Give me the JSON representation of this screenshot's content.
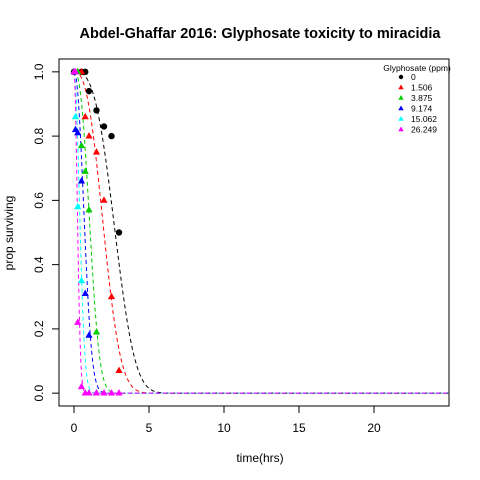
{
  "chart_data": {
    "type": "scatter",
    "title": "Abdel-Ghaffar 2016: Glyphosate toxicity to miracidia",
    "xlabel": "time(hrs)",
    "ylabel": "prop surviving",
    "xlim": [
      -1,
      25
    ],
    "ylim": [
      -0.04,
      1.04
    ],
    "x_ticks": [
      0,
      5,
      10,
      15,
      20
    ],
    "x_tick_labels": [
      "0",
      "5",
      "10",
      "15",
      "20"
    ],
    "y_ticks": [
      0.0,
      0.2,
      0.4,
      0.6,
      0.8,
      1.0
    ],
    "y_tick_labels": [
      "0.0",
      "0.2",
      "0.4",
      "0.6",
      "0.8",
      "1.0"
    ],
    "legend": {
      "title": "Glyphosate (ppm)",
      "position": "top-right"
    },
    "series": [
      {
        "name": "0",
        "color": "#000000",
        "marker": "circle",
        "points": [
          [
            0,
            1.0
          ],
          [
            0.5,
            1.0
          ],
          [
            0.75,
            1.0
          ],
          [
            1,
            0.94
          ],
          [
            1.5,
            0.88
          ],
          [
            2,
            0.83
          ],
          [
            2.5,
            0.8
          ],
          [
            3,
            0.5
          ]
        ],
        "fit": {
          "shape": 3.0,
          "scale": 3.1
        }
      },
      {
        "name": "1.506",
        "color": "#ff0000",
        "marker": "triangle",
        "points": [
          [
            0.25,
            1.0
          ],
          [
            0.5,
            1.0
          ],
          [
            0.75,
            0.86
          ],
          [
            1,
            0.8
          ],
          [
            1.5,
            0.75
          ],
          [
            2,
            0.6
          ],
          [
            2.5,
            0.3
          ],
          [
            3,
            0.07
          ]
        ],
        "fit": {
          "shape": 2.6,
          "scale": 2.3
        }
      },
      {
        "name": "3.875",
        "color": "#00cd00",
        "marker": "triangle",
        "points": [
          [
            0,
            1.0
          ],
          [
            0.25,
            1.0
          ],
          [
            0.5,
            0.77
          ],
          [
            0.75,
            0.69
          ],
          [
            1,
            0.57
          ],
          [
            1.5,
            0.19
          ]
        ],
        "fit": {
          "shape": 2.5,
          "scale": 1.25
        }
      },
      {
        "name": "9.174",
        "color": "#0000ff",
        "marker": "triangle",
        "points": [
          [
            0,
            1.0
          ],
          [
            0.1,
            0.82
          ],
          [
            0.25,
            0.81
          ],
          [
            0.5,
            0.66
          ],
          [
            0.75,
            0.31
          ],
          [
            1,
            0.18
          ],
          [
            1.5,
            0.0
          ]
        ],
        "fit": {
          "shape": 2.2,
          "scale": 0.85
        }
      },
      {
        "name": "15.062",
        "color": "#00ffff",
        "marker": "triangle",
        "points": [
          [
            0,
            1.0
          ],
          [
            0.1,
            0.86
          ],
          [
            0.25,
            0.58
          ],
          [
            0.5,
            0.35
          ],
          [
            1,
            0.0
          ],
          [
            1.5,
            0.0
          ]
        ],
        "fit": {
          "shape": 2.0,
          "scale": 0.5
        }
      },
      {
        "name": "26.249",
        "color": "#ff00ff",
        "marker": "triangle",
        "points": [
          [
            0,
            1.0
          ],
          [
            0.1,
            1.0
          ],
          [
            0.25,
            0.22
          ],
          [
            0.5,
            0.02
          ],
          [
            0.75,
            0.0
          ],
          [
            1,
            0.0
          ],
          [
            1.5,
            0.0
          ],
          [
            2,
            0.0
          ],
          [
            2.5,
            0.0
          ],
          [
            3,
            0.0
          ]
        ],
        "fit": {
          "shape": 2.0,
          "scale": 0.3
        }
      }
    ]
  }
}
